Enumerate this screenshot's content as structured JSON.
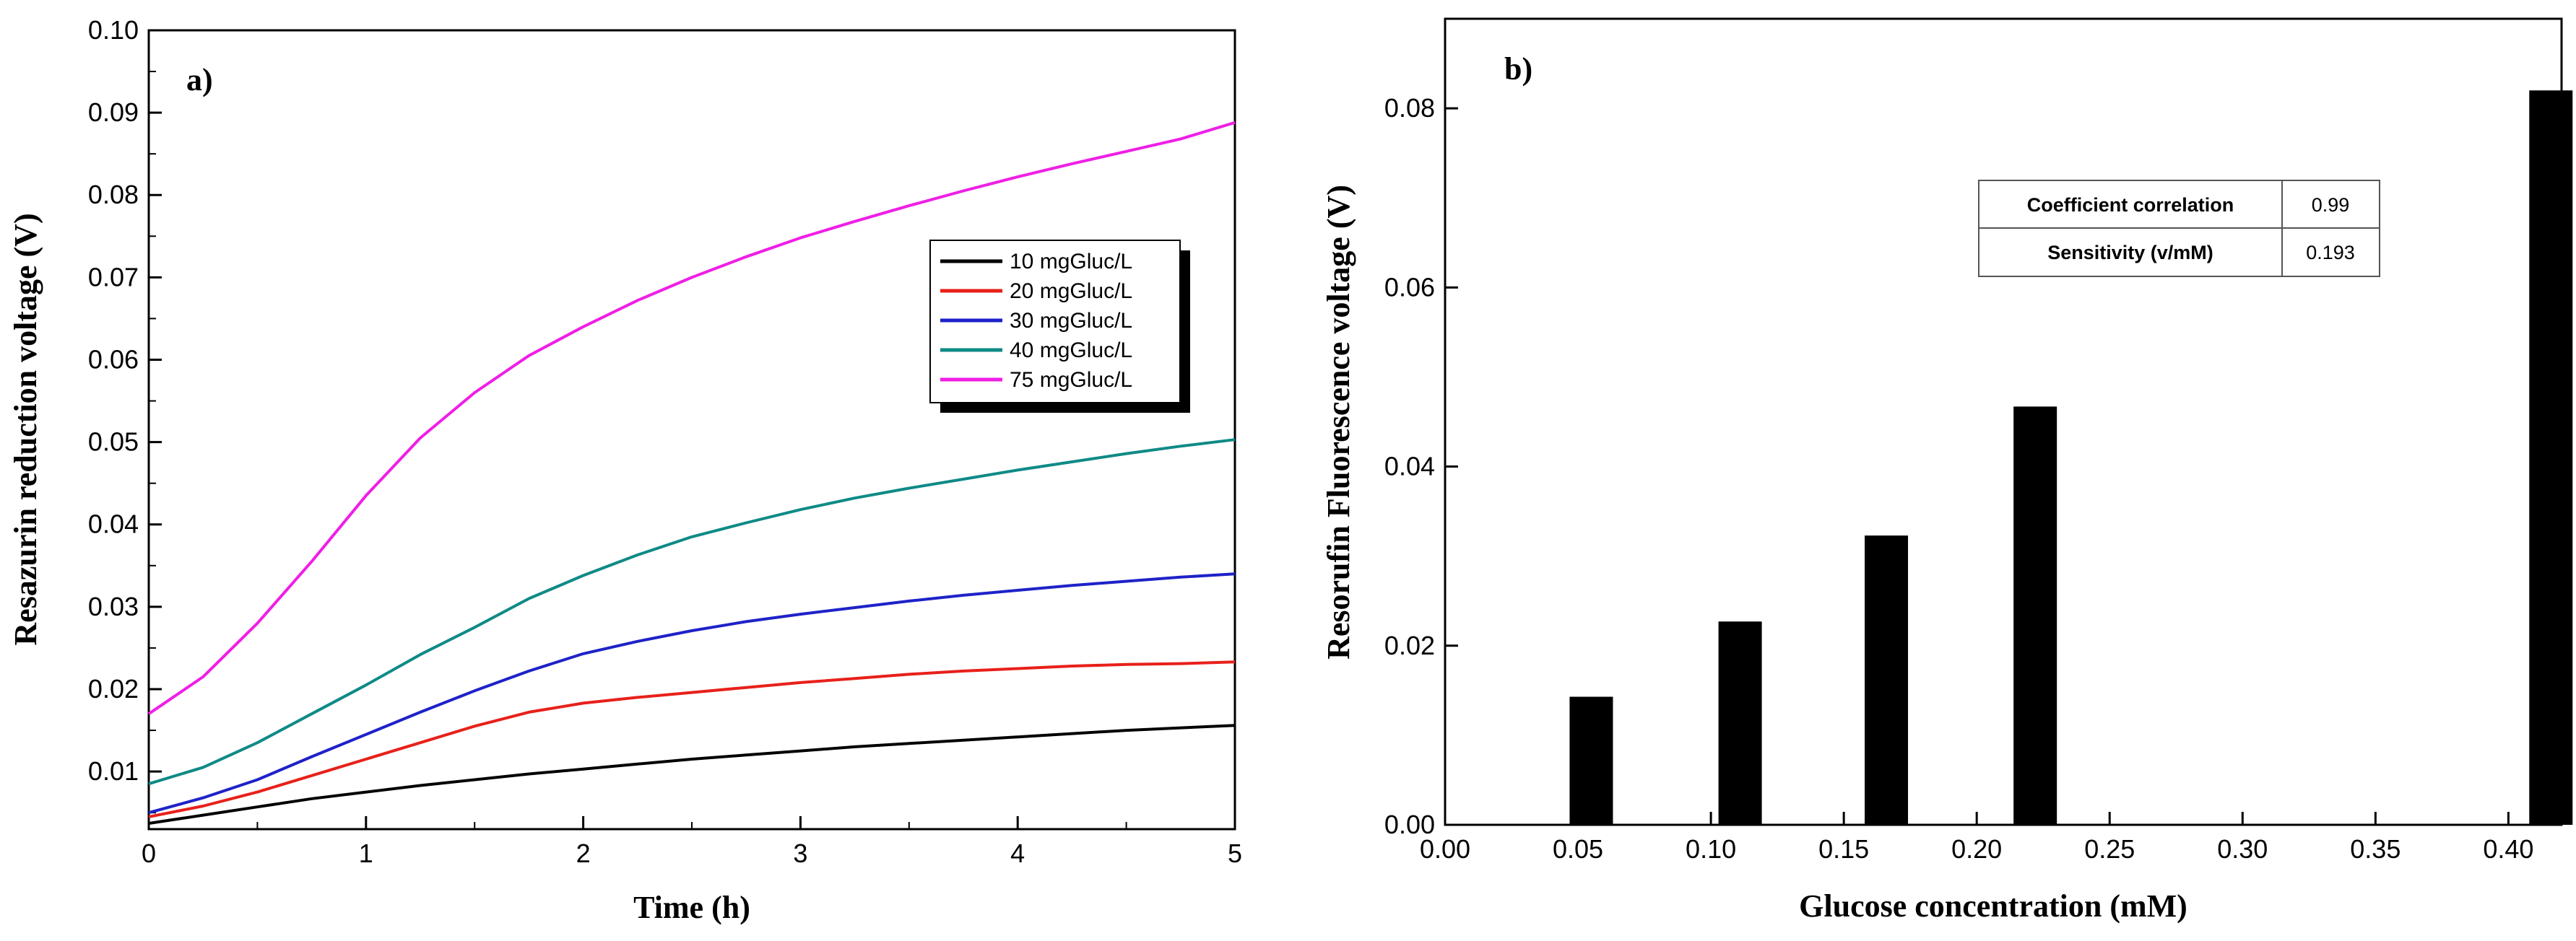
{
  "chart_data": [
    {
      "type": "line",
      "panel_label": "a)",
      "xlabel": "Time (h)",
      "ylabel": "Resazurin reduction voltage (V)",
      "xlim": [
        0,
        5
      ],
      "ylim": [
        0.003,
        0.1
      ],
      "xticks": [
        0,
        1,
        2,
        3,
        4,
        5
      ],
      "xtick_labels": [
        "0",
        "1",
        "2",
        "3",
        "4",
        "5"
      ],
      "yticks": [
        0.01,
        0.02,
        0.03,
        0.04,
        0.05,
        0.06,
        0.07,
        0.08,
        0.09,
        0.1
      ],
      "ytick_labels": [
        "0.01",
        "0.02",
        "0.03",
        "0.04",
        "0.05",
        "0.06",
        "0.07",
        "0.08",
        "0.09",
        "0.10"
      ],
      "legend_position": "center-right",
      "series": [
        {
          "name": "10 mgGluc/L",
          "color": "#000000",
          "x": [
            0,
            0.25,
            0.5,
            0.75,
            1,
            1.25,
            1.5,
            1.75,
            2,
            2.25,
            2.5,
            2.75,
            3,
            3.25,
            3.5,
            3.75,
            4,
            4.25,
            4.5,
            4.75,
            5
          ],
          "y": [
            0.0037,
            0.0047,
            0.0057,
            0.0067,
            0.0075,
            0.0083,
            0.009,
            0.0097,
            0.0103,
            0.0109,
            0.0115,
            0.012,
            0.0125,
            0.013,
            0.0134,
            0.0138,
            0.0142,
            0.0146,
            0.015,
            0.0153,
            0.0156
          ]
        },
        {
          "name": "20 mgGluc/L",
          "color": "#e8201a",
          "x": [
            0,
            0.25,
            0.5,
            0.75,
            1,
            1.25,
            1.5,
            1.75,
            2,
            2.25,
            2.5,
            2.75,
            3,
            3.25,
            3.5,
            3.75,
            4,
            4.25,
            4.5,
            4.75,
            5
          ],
          "y": [
            0.0045,
            0.0058,
            0.0075,
            0.0095,
            0.0115,
            0.0135,
            0.0155,
            0.0172,
            0.0183,
            0.019,
            0.0196,
            0.0202,
            0.0208,
            0.0213,
            0.0218,
            0.0222,
            0.0225,
            0.0228,
            0.023,
            0.0231,
            0.0233
          ]
        },
        {
          "name": "30 mgGluc/L",
          "color": "#1e22c8",
          "x": [
            0,
            0.25,
            0.5,
            0.75,
            1,
            1.25,
            1.5,
            1.75,
            2,
            2.25,
            2.5,
            2.75,
            3,
            3.25,
            3.5,
            3.75,
            4,
            4.25,
            4.5,
            4.75,
            5
          ],
          "y": [
            0.005,
            0.0068,
            0.009,
            0.0118,
            0.0145,
            0.0172,
            0.0198,
            0.0222,
            0.0243,
            0.0258,
            0.0271,
            0.0282,
            0.0291,
            0.0299,
            0.0307,
            0.0314,
            0.032,
            0.0326,
            0.0331,
            0.0336,
            0.034
          ]
        },
        {
          "name": "40 mgGluc/L",
          "color": "#0e8a86",
          "x": [
            0,
            0.25,
            0.5,
            0.75,
            1,
            1.25,
            1.5,
            1.75,
            2,
            2.25,
            2.5,
            2.75,
            3,
            3.25,
            3.5,
            3.75,
            4,
            4.25,
            4.5,
            4.75,
            5
          ],
          "y": [
            0.0085,
            0.0105,
            0.0135,
            0.017,
            0.0205,
            0.0242,
            0.0275,
            0.031,
            0.0338,
            0.0363,
            0.0385,
            0.0402,
            0.0418,
            0.0432,
            0.0444,
            0.0455,
            0.0466,
            0.0476,
            0.0486,
            0.0495,
            0.0503
          ]
        },
        {
          "name": "75 mgGluc/L",
          "color": "#f01ee6",
          "x": [
            0,
            0.25,
            0.5,
            0.75,
            1,
            1.25,
            1.5,
            1.75,
            2,
            2.25,
            2.5,
            2.75,
            3,
            3.25,
            3.5,
            3.75,
            4,
            4.25,
            4.5,
            4.75,
            5
          ],
          "y": [
            0.017,
            0.0215,
            0.028,
            0.0355,
            0.0435,
            0.0505,
            0.056,
            0.0605,
            0.064,
            0.0672,
            0.07,
            0.0725,
            0.0748,
            0.0768,
            0.0787,
            0.0805,
            0.0822,
            0.0838,
            0.0853,
            0.0868,
            0.0888
          ]
        }
      ]
    },
    {
      "type": "bar",
      "panel_label": "b)",
      "xlabel": "Glucose concentration (mM)",
      "ylabel": "Resorufin Fluorescence voltage (V)",
      "xlim": [
        0,
        0.42
      ],
      "ylim": [
        0,
        0.09
      ],
      "xticks": [
        0.0,
        0.05,
        0.1,
        0.15,
        0.2,
        0.25,
        0.3,
        0.35,
        0.4
      ],
      "xtick_labels": [
        "0.00",
        "0.05",
        "0.10",
        "0.15",
        "0.20",
        "0.25",
        "0.30",
        "0.35",
        "0.40"
      ],
      "yticks": [
        0,
        0.02,
        0.04,
        0.06,
        0.08
      ],
      "ytick_labels": [
        "0.00",
        "0.02",
        "0.04",
        "0.06",
        "0.08"
      ],
      "bar_color": "#000000",
      "x": [
        0.055,
        0.111,
        0.166,
        0.222,
        0.416
      ],
      "values": [
        0.0143,
        0.0227,
        0.0323,
        0.0467,
        0.082
      ],
      "table": {
        "rows": [
          {
            "label": "Coefficient correlation",
            "value": "0.99"
          },
          {
            "label": "Sensitivity (v/mM)",
            "value": "0.193"
          }
        ]
      }
    }
  ]
}
